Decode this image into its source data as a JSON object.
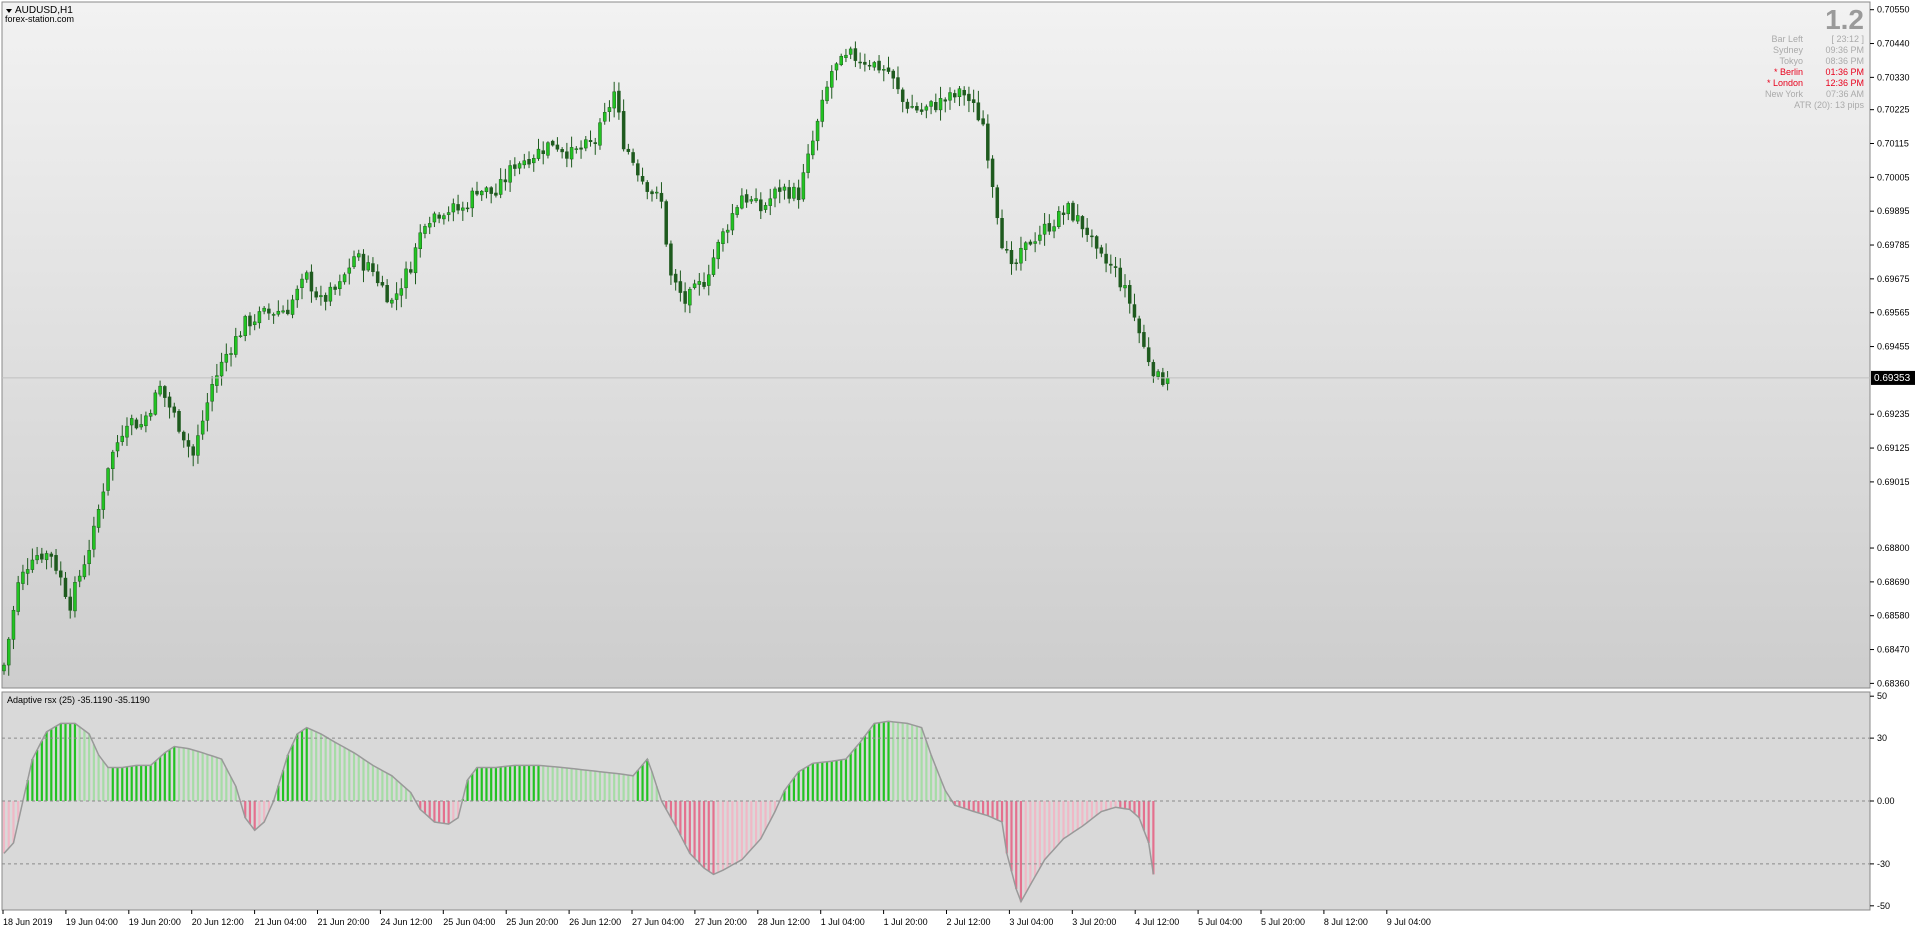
{
  "window": {
    "symbol_title": "AUDUSD,H1",
    "watermark": "forex-station.com"
  },
  "info_panel": {
    "big_value": "1.2",
    "rows": [
      {
        "label": "Bar Left",
        "value": "[ 23:12 ]",
        "color": "#aaaaaa"
      },
      {
        "label": "Sydney",
        "value": "09:36 PM",
        "color": "#aaaaaa"
      },
      {
        "label": "Tokyo",
        "value": "08:36 PM",
        "color": "#aaaaaa"
      },
      {
        "label": "* Berlin",
        "value": "01:36 PM",
        "color": "#e8001c"
      },
      {
        "label": "* London",
        "value": "12:36 PM",
        "color": "#e8001c"
      },
      {
        "label": "New York",
        "value": "07:36 AM",
        "color": "#aaaaaa"
      }
    ],
    "atr": "ATR (20): 13 pips"
  },
  "colors": {
    "bull": "#22c322",
    "bull_light": "#a6dca6",
    "bear": "#e4708e",
    "bear_light": "#f0b8c6",
    "candle_outline": "#1e5a1e",
    "osc_line": "#999999",
    "price_line": "#c0c0c0",
    "price_tag_bg": "#000000"
  },
  "price_chart": {
    "current_price": "0.69353",
    "y_ticks": [
      "0.70550",
      "0.70440",
      "0.70330",
      "0.70225",
      "0.70115",
      "0.70005",
      "0.69895",
      "0.69785",
      "0.69675",
      "0.69565",
      "0.69455",
      "0.69235",
      "0.69125",
      "0.69015",
      "0.68800",
      "0.68690",
      "0.68580",
      "0.68470",
      "0.68360"
    ]
  },
  "oscillator": {
    "title": "Adaptive rsx (25) -35.1190 -35.1190",
    "y_ticks": [
      "50",
      "30",
      "0.00",
      "-30",
      "-50"
    ]
  },
  "x_axis": {
    "labels": [
      "18 Jun 2019",
      "19 Jun 04:00",
      "19 Jun 20:00",
      "20 Jun 12:00",
      "21 Jun 04:00",
      "21 Jun 20:00",
      "24 Jun 12:00",
      "25 Jun 04:00",
      "25 Jun 20:00",
      "26 Jun 12:00",
      "27 Jun 04:00",
      "27 Jun 20:00",
      "28 Jun 12:00",
      "1 Jul 04:00",
      "1 Jul 20:00",
      "2 Jul 12:00",
      "3 Jul 04:00",
      "3 Jul 20:00",
      "4 Jul 12:00",
      "5 Jul 04:00",
      "5 Jul 20:00",
      "8 Jul 12:00",
      "9 Jul 04:00"
    ]
  },
  "chart_data": [
    {
      "type": "candlestick",
      "title": "AUDUSD,H1",
      "ylim": [
        0.68345,
        0.70575
      ],
      "x": [
        "18 Jun 2019",
        "19 Jun 04:00",
        "19 Jun 20:00",
        "20 Jun 12:00",
        "21 Jun 04:00",
        "21 Jun 20:00",
        "24 Jun 12:00",
        "25 Jun 04:00",
        "25 Jun 20:00",
        "26 Jun 12:00",
        "27 Jun 04:00",
        "27 Jun 20:00",
        "28 Jun 12:00",
        "1 Jul 04:00",
        "1 Jul 20:00",
        "2 Jul 12:00",
        "3 Jul 04:00",
        "3 Jul 20:00",
        "4 Jul 12:00",
        "5 Jul 04:00",
        "5 Jul 20:00",
        "8 Jul 12:00",
        "9 Jul 04:00"
      ],
      "close_path": [
        [
          0,
          0.6842
        ],
        [
          3,
          0.6868
        ],
        [
          6,
          0.6878
        ],
        [
          10,
          0.6878
        ],
        [
          14,
          0.6862
        ],
        [
          19,
          0.6885
        ],
        [
          22,
          0.6907
        ],
        [
          26,
          0.6922
        ],
        [
          29,
          0.692
        ],
        [
          33,
          0.6932
        ],
        [
          37,
          0.692
        ],
        [
          40,
          0.691
        ],
        [
          44,
          0.6933
        ],
        [
          47,
          0.6943
        ],
        [
          51,
          0.6953
        ],
        [
          55,
          0.6956
        ],
        [
          60,
          0.6958
        ],
        [
          64,
          0.6968
        ],
        [
          67,
          0.696
        ],
        [
          71,
          0.6965
        ],
        [
          74,
          0.6975
        ],
        [
          78,
          0.697
        ],
        [
          82,
          0.696
        ],
        [
          86,
          0.6972
        ],
        [
          89,
          0.6987
        ],
        [
          93,
          0.699
        ],
        [
          97,
          0.699
        ],
        [
          100,
          0.6997
        ],
        [
          104,
          0.6995
        ],
        [
          108,
          0.7005
        ],
        [
          112,
          0.7008
        ],
        [
          116,
          0.7012
        ],
        [
          120,
          0.7008
        ],
        [
          125,
          0.7012
        ],
        [
          129,
          0.7028
        ],
        [
          131,
          0.7012
        ],
        [
          135,
          0.7
        ],
        [
          139,
          0.6992
        ],
        [
          141,
          0.6968
        ],
        [
          144,
          0.696
        ],
        [
          148,
          0.6967
        ],
        [
          152,
          0.6982
        ],
        [
          156,
          0.6995
        ],
        [
          160,
          0.699
        ],
        [
          164,
          0.6997
        ],
        [
          168,
          0.6995
        ],
        [
          171,
          0.7012
        ],
        [
          175,
          0.7035
        ],
        [
          179,
          0.704
        ],
        [
          183,
          0.7038
        ],
        [
          187,
          0.7035
        ],
        [
          190,
          0.7025
        ],
        [
          194,
          0.7022
        ],
        [
          198,
          0.7025
        ],
        [
          203,
          0.7028
        ],
        [
          207,
          0.7018
        ],
        [
          211,
          0.698
        ],
        [
          213,
          0.697
        ],
        [
          217,
          0.698
        ],
        [
          221,
          0.6985
        ],
        [
          225,
          0.699
        ],
        [
          229,
          0.6983
        ],
        [
          231,
          0.6975
        ],
        [
          235,
          0.697
        ],
        [
          238,
          0.696
        ],
        [
          241,
          0.6945
        ],
        [
          244,
          0.6935
        ],
        [
          246,
          0.6935
        ]
      ],
      "last_close": 0.69353
    },
    {
      "type": "bar",
      "title": "Adaptive rsx (25) -35.1190 -35.1190",
      "ylim": [
        -52,
        52
      ],
      "reference_lines": [
        30,
        0,
        -30
      ],
      "curve": [
        [
          0,
          -25
        ],
        [
          2,
          -20
        ],
        [
          4,
          0
        ],
        [
          6,
          20
        ],
        [
          9,
          33
        ],
        [
          12,
          37
        ],
        [
          15,
          37
        ],
        [
          18,
          32
        ],
        [
          20,
          22
        ],
        [
          22,
          16
        ],
        [
          25,
          16
        ],
        [
          28,
          17
        ],
        [
          31,
          17
        ],
        [
          34,
          23
        ],
        [
          36,
          26
        ],
        [
          39,
          25
        ],
        [
          42,
          23
        ],
        [
          46,
          20
        ],
        [
          49,
          7
        ],
        [
          51,
          -8
        ],
        [
          53,
          -14
        ],
        [
          55,
          -10
        ],
        [
          57,
          0
        ],
        [
          60,
          22
        ],
        [
          62,
          32
        ],
        [
          64,
          35
        ],
        [
          67,
          32
        ],
        [
          70,
          28
        ],
        [
          74,
          23
        ],
        [
          78,
          17
        ],
        [
          82,
          12
        ],
        [
          86,
          4
        ],
        [
          88,
          -4
        ],
        [
          91,
          -10
        ],
        [
          94,
          -11
        ],
        [
          96,
          -8
        ],
        [
          98,
          10
        ],
        [
          100,
          16
        ],
        [
          104,
          16
        ],
        [
          108,
          17
        ],
        [
          113,
          17
        ],
        [
          118,
          16
        ],
        [
          122,
          15
        ],
        [
          126,
          14
        ],
        [
          130,
          13
        ],
        [
          133,
          12
        ],
        [
          136,
          20
        ],
        [
          137,
          14
        ],
        [
          139,
          0
        ],
        [
          142,
          -12
        ],
        [
          145,
          -25
        ],
        [
          148,
          -32
        ],
        [
          150,
          -35
        ],
        [
          152,
          -33
        ],
        [
          156,
          -28
        ],
        [
          160,
          -18
        ],
        [
          163,
          -5
        ],
        [
          165,
          5
        ],
        [
          168,
          14
        ],
        [
          171,
          18
        ],
        [
          175,
          19
        ],
        [
          178,
          20
        ],
        [
          181,
          28
        ],
        [
          184,
          37
        ],
        [
          187,
          38
        ],
        [
          191,
          37
        ],
        [
          194,
          35
        ],
        [
          196,
          22
        ],
        [
          199,
          5
        ],
        [
          201,
          -2
        ],
        [
          205,
          -5
        ],
        [
          208,
          -7
        ],
        [
          211,
          -10
        ],
        [
          212,
          -25
        ],
        [
          214,
          -42
        ],
        [
          215,
          -48
        ],
        [
          217,
          -40
        ],
        [
          220,
          -28
        ],
        [
          224,
          -18
        ],
        [
          228,
          -12
        ],
        [
          232,
          -5
        ],
        [
          235,
          -3
        ],
        [
          238,
          -4
        ],
        [
          240,
          -8
        ],
        [
          242,
          -20
        ],
        [
          243,
          -35
        ]
      ]
    }
  ]
}
